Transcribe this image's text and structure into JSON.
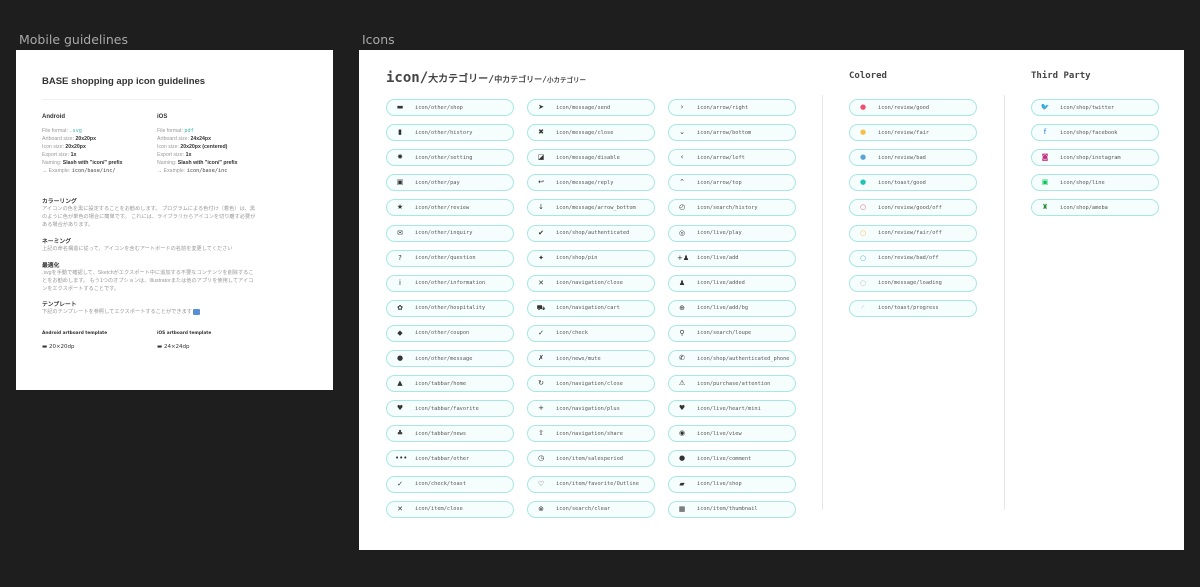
{
  "frames": {
    "guidelines": "Mobile guidelines",
    "icons": "Icons"
  },
  "guidelines": {
    "title": "BASE shopping app icon guidelines",
    "android": {
      "name": "Android",
      "file_format_label": "File format:",
      "file_format": ".svg",
      "artboard_label": "Artboard size:",
      "artboard": "20x20px",
      "icon_label": "Icon size:",
      "icon": "20x20px",
      "export_label": "Export size:",
      "export": "1x",
      "naming_label": "Naming:",
      "naming": "Slash with \"icon/\" prefix",
      "example_label": "→  Example:",
      "example": "icon/base/inc/"
    },
    "ios": {
      "name": "iOS",
      "file_format_label": "File format:",
      "file_format": "pdf",
      "artboard_label": "Artboard size:",
      "artboard": "24x24px",
      "icon_label": "Icon size:",
      "icon": "20x20px (centered)",
      "export_label": "Export size:",
      "export": "1x",
      "naming_label": "Naming:",
      "naming": "Slash with \"icon/\" prefix",
      "example_label": "→  Example:",
      "example": "icon/base/inc"
    },
    "sections": [
      {
        "title": "カラーリング",
        "body": "アイコンの色を黒に設定することをお勧めします。 プログラムによる色付け（着色）は、黒のように色が単色の場合に簡単です。 これには、ライブラリからアイコンを切り離す必要がある場合があります。"
      },
      {
        "title": "ネーミング",
        "body": "上記の命名構造に従って、アイコンを含むアートボードの名前を変更してください"
      },
      {
        "title": "最適化",
        "body": ".svgを手動で確認して、Sketchがエクスポート中に追加する不要なコンテンツを削除することをお勧めします。 もう1つのオプションは、Illustratorまたは他のアプリを使用してアイコンをエクスポートすることです。"
      },
      {
        "title": "テンプレート",
        "body": "下記のテンプレートを参照してエクスポートすることができます"
      }
    ],
    "templates": [
      {
        "label": "Android artboard template",
        "name": "20×20dp"
      },
      {
        "label": "iOS artboard template",
        "name": "24×24dp"
      }
    ]
  },
  "icons": {
    "heading_main": "icon/",
    "heading_l": "大カテゴリー/",
    "heading_m": "中カテゴリー/",
    "heading_s": "小カテゴリー",
    "colored_title": "Colored",
    "third_title": "Third Party",
    "columns": [
      [
        [
          "▬",
          "icon/other/shop"
        ],
        [
          "▮",
          "icon/other/history"
        ],
        [
          "✹",
          "icon/other/setting"
        ],
        [
          "▣",
          "icon/other/pay"
        ],
        [
          "★",
          "icon/other/review"
        ],
        [
          "✉",
          "icon/other/inquiry"
        ],
        [
          "?",
          "icon/other/question"
        ],
        [
          "i",
          "icon/other/information"
        ],
        [
          "✿",
          "icon/other/hospitality"
        ],
        [
          "◆",
          "icon/other/coupon"
        ],
        [
          "●",
          "icon/other/message"
        ],
        [
          "▲",
          "icon/tabbar/home"
        ],
        [
          "♥",
          "icon/tabbar/favorite"
        ],
        [
          "♣",
          "icon/tabbar/news"
        ],
        [
          "•••",
          "icon/tabbar/other"
        ],
        [
          "✓",
          "icon/check/toast"
        ],
        [
          "✕",
          "icon/item/close"
        ]
      ],
      [
        [
          "➤",
          "icon/message/send"
        ],
        [
          "✖",
          "icon/message/close"
        ],
        [
          "◪",
          "icon/message/disable"
        ],
        [
          "↩",
          "icon/message/reply"
        ],
        [
          "↓",
          "icon/message/arrow_bottom"
        ],
        [
          "✔",
          "icon/shop/authenticated"
        ],
        [
          "✦",
          "icon/shop/pin"
        ],
        [
          "✕",
          "icon/navigation/close"
        ],
        [
          "⛟",
          "icon/navigation/cart"
        ],
        [
          "✓",
          "icon/check"
        ],
        [
          "✗",
          "icon/news/mute"
        ],
        [
          "↻",
          "icon/navigation/close"
        ],
        [
          "+",
          "icon/navigation/plus"
        ],
        [
          "⇧",
          "icon/navigation/share"
        ],
        [
          "◷",
          "icon/item/salesperiod"
        ],
        [
          "♡",
          "icon/item/favorite/Outline"
        ],
        [
          "⊗",
          "icon/search/clear"
        ]
      ],
      [
        [
          "›",
          "icon/arrow/right"
        ],
        [
          "⌄",
          "icon/arrow/bottom"
        ],
        [
          "‹",
          "icon/arrow/left"
        ],
        [
          "⌃",
          "icon/arrow/top"
        ],
        [
          "◴",
          "icon/search/history"
        ],
        [
          "◎",
          "icon/live/play"
        ],
        [
          "+♟",
          "icon/live/add"
        ],
        [
          "♟",
          "icon/live/added"
        ],
        [
          "⊕",
          "icon/live/add/bg"
        ],
        [
          "⚲",
          "icon/search/loupe"
        ],
        [
          "✆",
          "icon/shop/authenticated_phone"
        ],
        [
          "⚠",
          "icon/purchase/attention"
        ],
        [
          "♥",
          "icon/live/heart/mini"
        ],
        [
          "◉",
          "icon/live/view"
        ],
        [
          "●",
          "icon/live/comment"
        ],
        [
          "▰",
          "icon/live/shop"
        ],
        [
          "▦",
          "icon/item/thumbnail"
        ]
      ]
    ],
    "colored": [
      [
        "●",
        "icon/review/good",
        "#f0506e"
      ],
      [
        "●",
        "icon/review/fair",
        "#f5c04a"
      ],
      [
        "●",
        "icon/review/bad",
        "#5aa5d6"
      ],
      [
        "●",
        "icon/toast/good",
        "#1fc4b4"
      ],
      [
        "○",
        "icon/review/good/off",
        "#f0506e"
      ],
      [
        "○",
        "icon/review/fair/off",
        "#f5c04a"
      ],
      [
        "○",
        "icon/review/bad/off",
        "#5aa5d6"
      ],
      [
        "○",
        "icon/message/loading",
        "#bbbbbb"
      ],
      [
        "◜",
        "icon/toast/progress",
        "#bbbbbb"
      ]
    ],
    "third_party": [
      [
        "🐦",
        "icon/shop/twitter",
        "#1da1f2"
      ],
      [
        "f",
        "icon/shop/facebook",
        "#1877f2"
      ],
      [
        "◙",
        "icon/shop/instagram",
        "#c13584"
      ],
      [
        "▣",
        "icon/shop/line",
        "#06c755"
      ],
      [
        "♜",
        "icon/shop/ameba",
        "#2d8c3c"
      ]
    ]
  }
}
